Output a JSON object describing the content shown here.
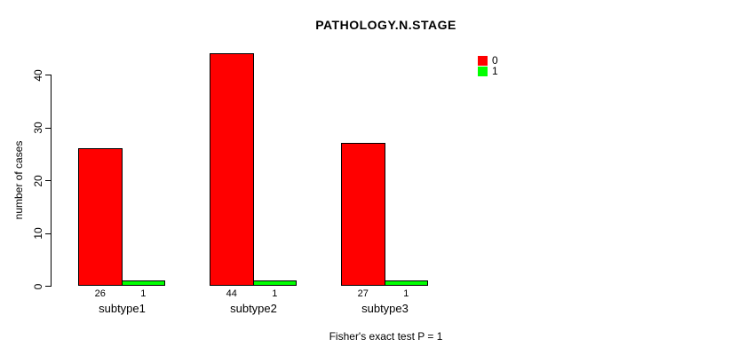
{
  "chart_data": {
    "type": "bar",
    "title": "PATHOLOGY.N.STAGE",
    "ylabel": "number of cases",
    "xlabel": "",
    "caption": "Fisher's exact test P = 1",
    "categories": [
      "subtype1",
      "subtype2",
      "subtype3"
    ],
    "series": [
      {
        "name": "0",
        "color": "#ff0000",
        "values": [
          26,
          44,
          27
        ]
      },
      {
        "name": "1",
        "color": "#00ff00",
        "values": [
          1,
          1,
          1
        ]
      }
    ],
    "yticks": [
      0,
      10,
      20,
      30,
      40
    ],
    "ylim": [
      0,
      44
    ],
    "grid": false,
    "legend_position": "right",
    "bar_value_labels": true
  }
}
